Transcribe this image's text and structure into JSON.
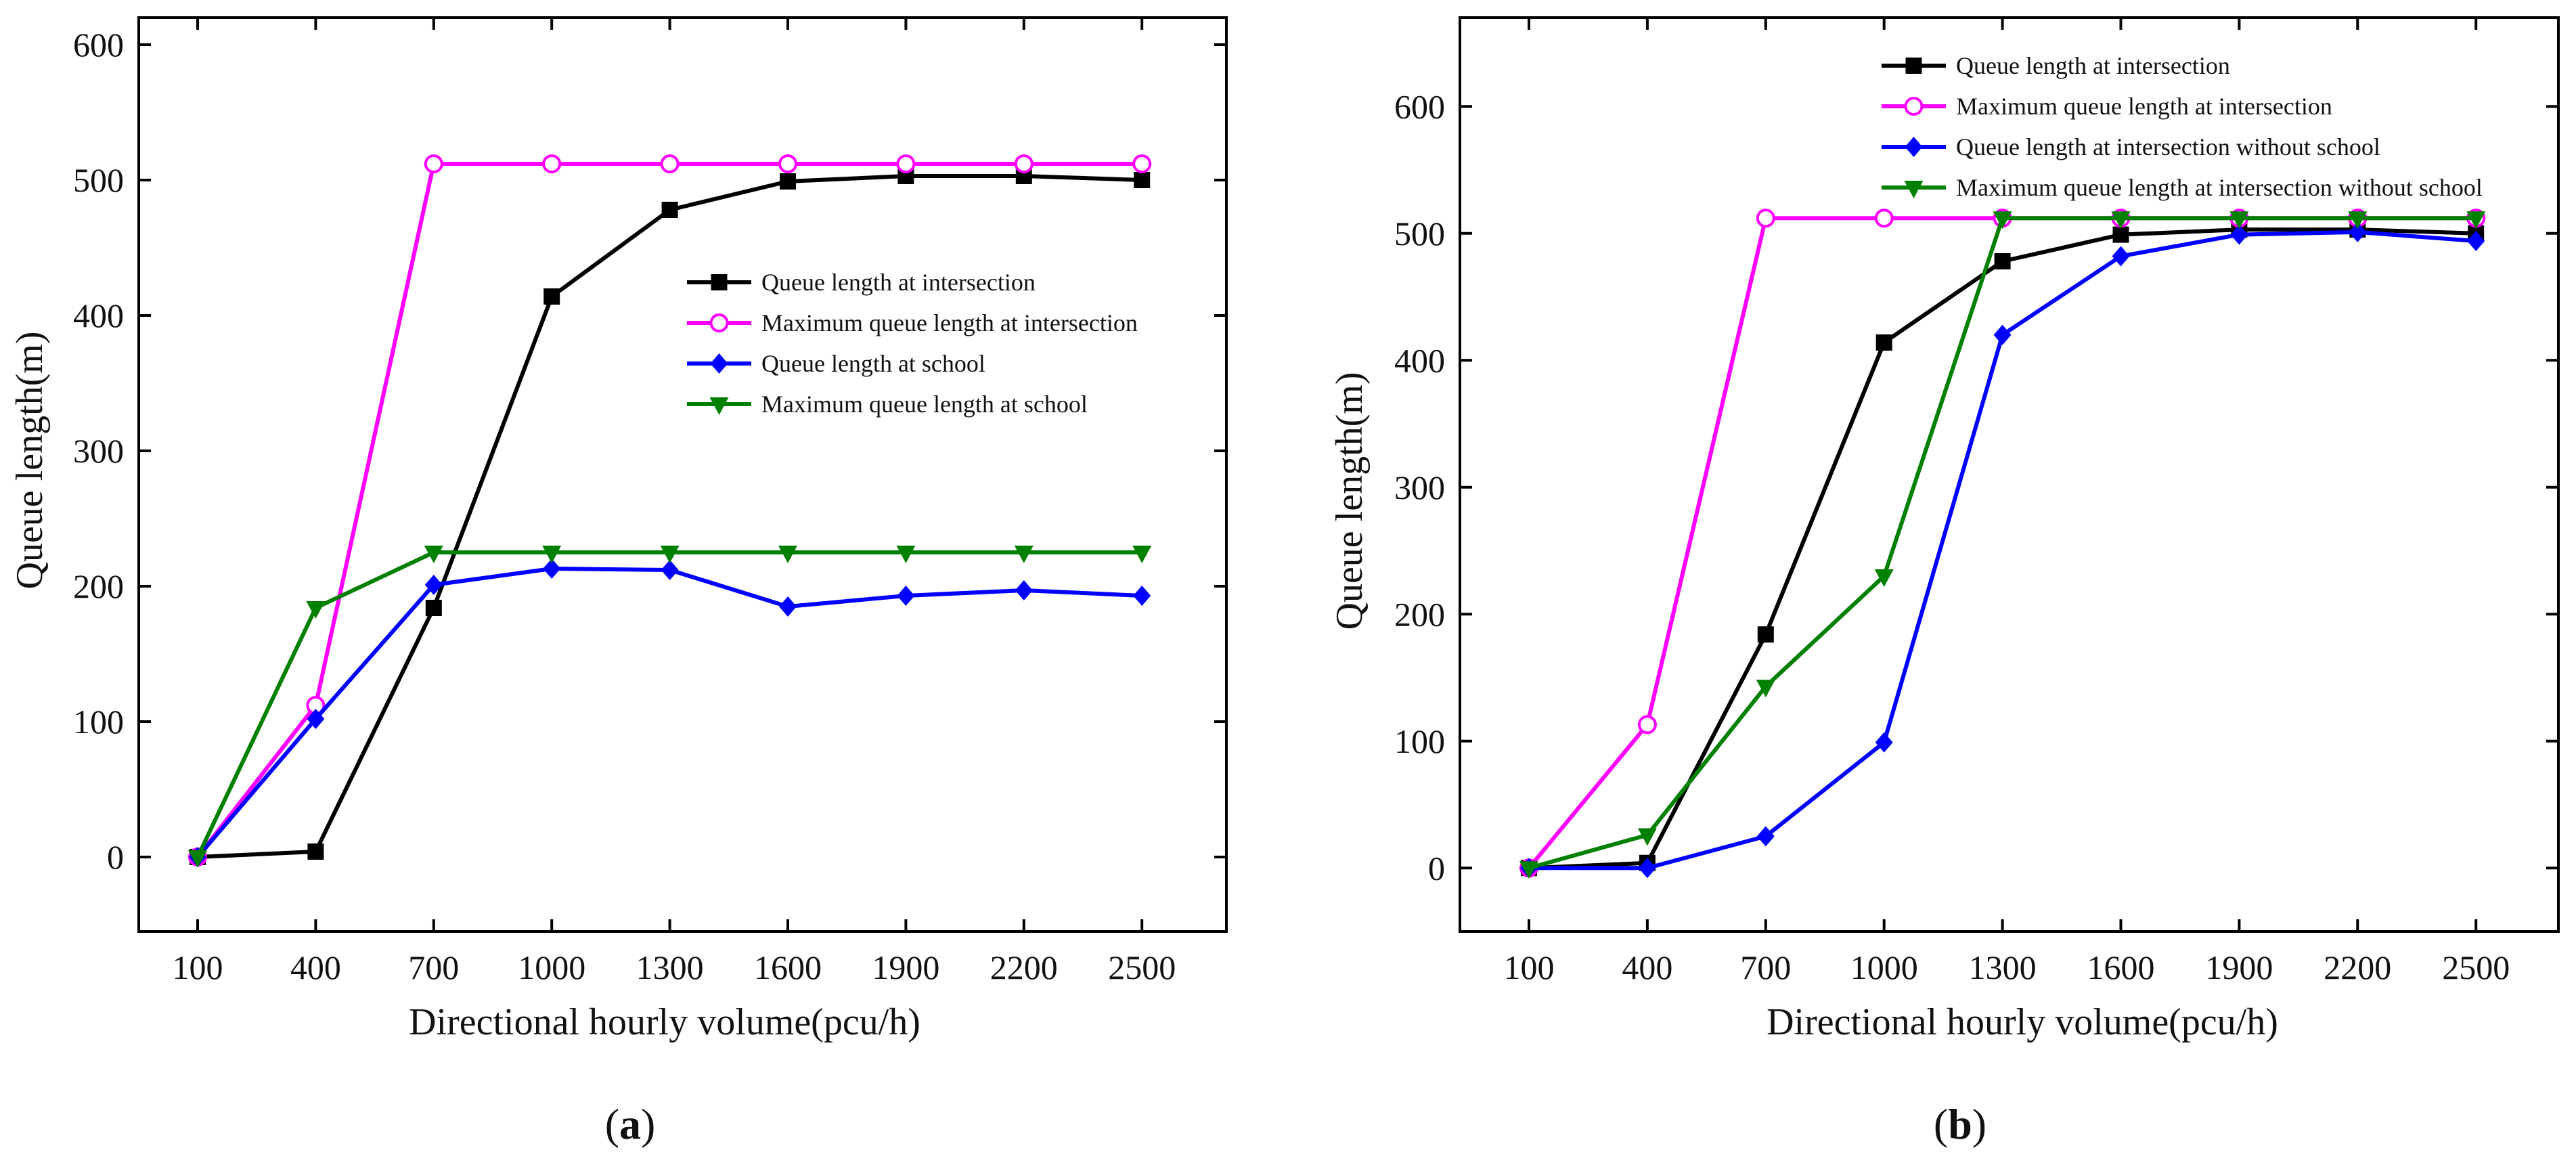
{
  "chart_data": [
    {
      "type": "line",
      "panel_label": "a",
      "xlabel": "Directional hourly volume(pcu/h)",
      "ylabel": "Queue length(m)",
      "categories": [
        "100",
        "400",
        "700",
        "1000",
        "1300",
        "1600",
        "1900",
        "2200",
        "2500"
      ],
      "yticks": [
        0,
        100,
        200,
        300,
        400,
        500,
        600
      ],
      "ylim": [
        -55,
        620
      ],
      "legend_position": "center-right",
      "series": [
        {
          "name": "Queue length at intersection",
          "color": "#000000",
          "marker": "square",
          "values": [
            0,
            4,
            184,
            414,
            478,
            499,
            503,
            503,
            500
          ]
        },
        {
          "name": "Maximum queue length at intersection",
          "color": "#ff00ff",
          "marker": "circle",
          "values": [
            0,
            112,
            512,
            512,
            512,
            512,
            512,
            512,
            512
          ]
        },
        {
          "name": "Queue length at school",
          "color": "#0000ff",
          "marker": "diamond",
          "values": [
            0,
            102,
            201,
            213,
            212,
            185,
            193,
            197,
            193
          ]
        },
        {
          "name": "Maximum queue length at school",
          "color": "#008000",
          "marker": "triangle-down",
          "values": [
            0,
            184,
            225,
            225,
            225,
            225,
            225,
            225,
            225
          ]
        }
      ]
    },
    {
      "type": "line",
      "panel_label": "b",
      "xlabel": "Directional hourly volume(pcu/h)",
      "ylabel": "Queue length(m)",
      "categories": [
        "100",
        "400",
        "700",
        "1000",
        "1300",
        "1600",
        "1900",
        "2200",
        "2500"
      ],
      "yticks": [
        0,
        100,
        200,
        300,
        400,
        500,
        600
      ],
      "ylim": [
        -50,
        670
      ],
      "legend_position": "top-left",
      "series": [
        {
          "name": "Queue length at intersection",
          "color": "#000000",
          "marker": "square",
          "values": [
            0,
            4,
            184,
            414,
            478,
            499,
            503,
            503,
            500
          ]
        },
        {
          "name": "Maximum queue length at intersection",
          "color": "#ff00ff",
          "marker": "circle",
          "values": [
            0,
            113,
            512,
            512,
            512,
            512,
            512,
            512,
            512
          ]
        },
        {
          "name": "Queue length at intersection without school",
          "color": "#0000ff",
          "marker": "diamond",
          "values": [
            0,
            0,
            25,
            99,
            420,
            482,
            499,
            501,
            494
          ]
        },
        {
          "name": "Maximum queue length at intersection without school",
          "color": "#008000",
          "marker": "triangle-down",
          "values": [
            0,
            26,
            143,
            230,
            512,
            512,
            512,
            512,
            512
          ]
        }
      ]
    }
  ]
}
